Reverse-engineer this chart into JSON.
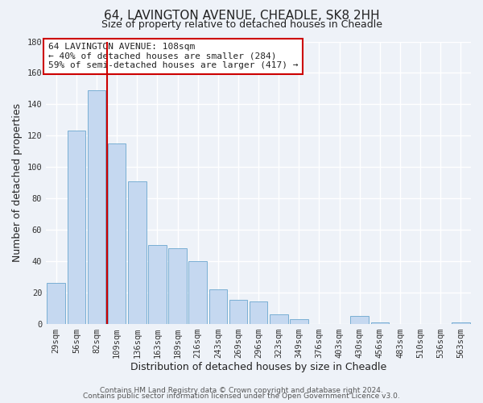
{
  "title": "64, LAVINGTON AVENUE, CHEADLE, SK8 2HH",
  "subtitle": "Size of property relative to detached houses in Cheadle",
  "xlabel": "Distribution of detached houses by size in Cheadle",
  "ylabel": "Number of detached properties",
  "bar_labels": [
    "29sqm",
    "56sqm",
    "82sqm",
    "109sqm",
    "136sqm",
    "163sqm",
    "189sqm",
    "216sqm",
    "243sqm",
    "269sqm",
    "296sqm",
    "323sqm",
    "349sqm",
    "376sqm",
    "403sqm",
    "430sqm",
    "456sqm",
    "483sqm",
    "510sqm",
    "536sqm",
    "563sqm"
  ],
  "bar_values": [
    26,
    123,
    149,
    115,
    91,
    50,
    48,
    40,
    22,
    15,
    14,
    6,
    3,
    0,
    0,
    5,
    1,
    0,
    0,
    0,
    1
  ],
  "bar_color": "#c5d8f0",
  "bar_edge_color": "#7aafd4",
  "vline_x_index": 3,
  "vline_color": "#cc0000",
  "ylim": [
    0,
    180
  ],
  "yticks": [
    0,
    20,
    40,
    60,
    80,
    100,
    120,
    140,
    160,
    180
  ],
  "annotation_line1": "64 LAVINGTON AVENUE: 108sqm",
  "annotation_line2": "← 40% of detached houses are smaller (284)",
  "annotation_line3": "59% of semi-detached houses are larger (417) →",
  "annotation_box_color": "#ffffff",
  "annotation_box_edge_color": "#cc0000",
  "footer_line1": "Contains HM Land Registry data © Crown copyright and database right 2024.",
  "footer_line2": "Contains public sector information licensed under the Open Government Licence v3.0.",
  "background_color": "#eef2f8",
  "grid_color": "#ffffff",
  "title_fontsize": 11,
  "subtitle_fontsize": 9,
  "axis_label_fontsize": 9,
  "tick_fontsize": 7.5,
  "annotation_fontsize": 8,
  "footer_fontsize": 6.5
}
